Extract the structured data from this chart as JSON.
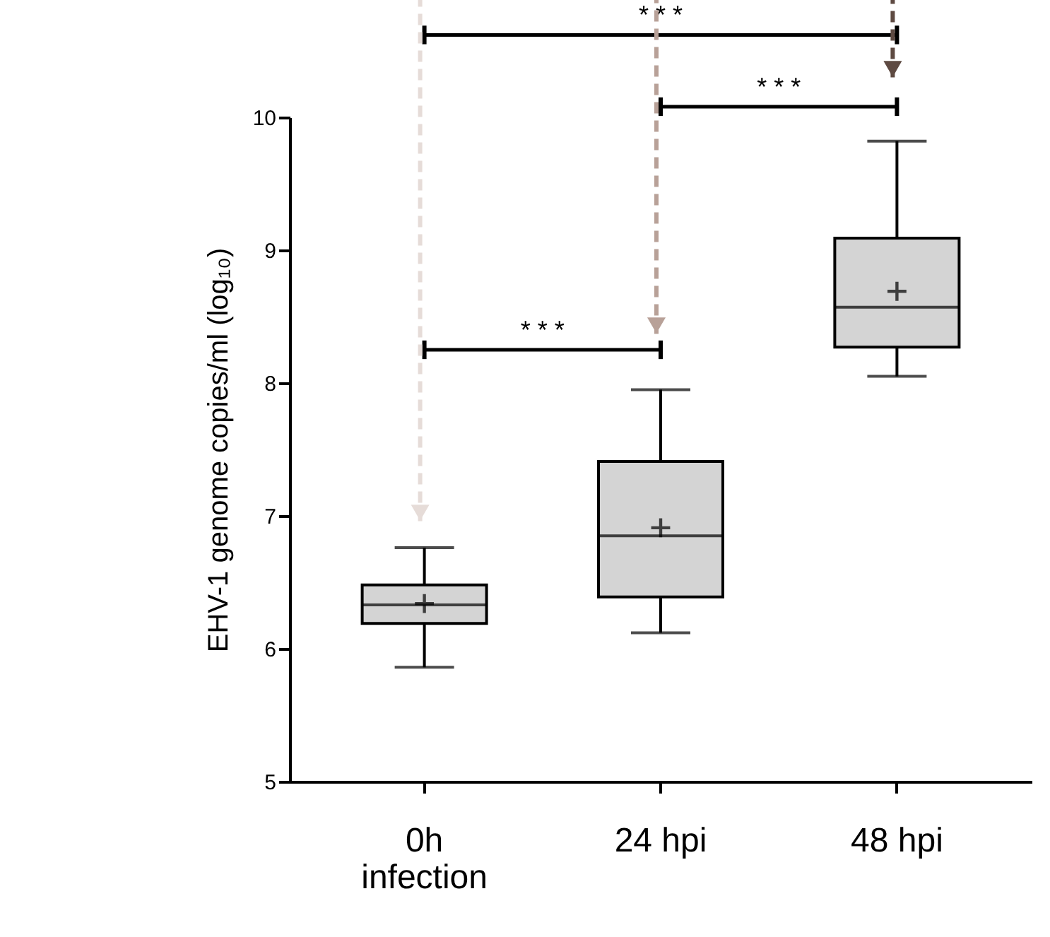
{
  "chart_data": {
    "type": "box",
    "ylabel": "EHV-1 genome copies/ml (log₁₀)",
    "categories": [
      "0h\ninfection",
      "24 hpi",
      "48 hpi"
    ],
    "series": [
      {
        "color": "#d4d4d4",
        "boxes": [
          {
            "low": 5.86,
            "q1": 6.19,
            "median": 6.33,
            "q3": 6.48,
            "high": 6.76,
            "mean": 6.34
          },
          {
            "low": 6.12,
            "q1": 6.39,
            "median": 6.85,
            "q3": 7.41,
            "high": 7.95,
            "mean": 6.91
          },
          {
            "low": 8.05,
            "q1": 8.27,
            "median": 8.57,
            "q3": 9.09,
            "high": 9.82,
            "mean": 8.69
          }
        ]
      }
    ],
    "ylim": [
      5,
      10
    ],
    "yticks": [
      5,
      6,
      7,
      8,
      9,
      10
    ],
    "grid": false,
    "annotations": [
      "* * *",
      "* * *",
      "* * *"
    ]
  }
}
